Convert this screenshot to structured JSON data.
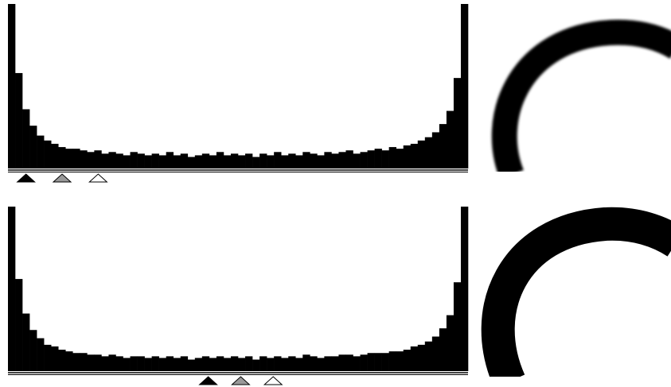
{
  "panels": [
    {
      "histogram": {
        "ylim": [
          0,
          100
        ],
        "xlim": [
          0,
          255
        ],
        "color": "#000000",
        "values": [
          100,
          58,
          36,
          26,
          20,
          17,
          15,
          13,
          12,
          12,
          11,
          10,
          11,
          9,
          10,
          9,
          8,
          10,
          9,
          8,
          9,
          8,
          10,
          8,
          9,
          7,
          8,
          9,
          8,
          10,
          8,
          9,
          8,
          9,
          7,
          9,
          8,
          10,
          8,
          9,
          8,
          10,
          9,
          8,
          10,
          9,
          10,
          11,
          9,
          10,
          11,
          12,
          11,
          13,
          12,
          14,
          15,
          17,
          19,
          22,
          27,
          35,
          55,
          100
        ]
      },
      "input_levels": {
        "black": 10,
        "gray": 30,
        "white": 50
      }
    },
    {
      "histogram": {
        "ylim": [
          0,
          100
        ],
        "xlim": [
          0,
          255
        ],
        "color": "#000000",
        "values": [
          100,
          56,
          35,
          25,
          20,
          16,
          15,
          13,
          12,
          11,
          11,
          10,
          10,
          9,
          10,
          9,
          8,
          9,
          9,
          8,
          9,
          8,
          9,
          8,
          9,
          7,
          8,
          9,
          8,
          9,
          8,
          9,
          8,
          9,
          7,
          9,
          8,
          9,
          8,
          9,
          8,
          10,
          9,
          8,
          9,
          9,
          10,
          10,
          9,
          10,
          11,
          11,
          11,
          12,
          12,
          13,
          15,
          16,
          18,
          21,
          26,
          34,
          54,
          100
        ]
      },
      "input_levels": {
        "black": 111,
        "gray": 129,
        "white": 147
      }
    }
  ]
}
